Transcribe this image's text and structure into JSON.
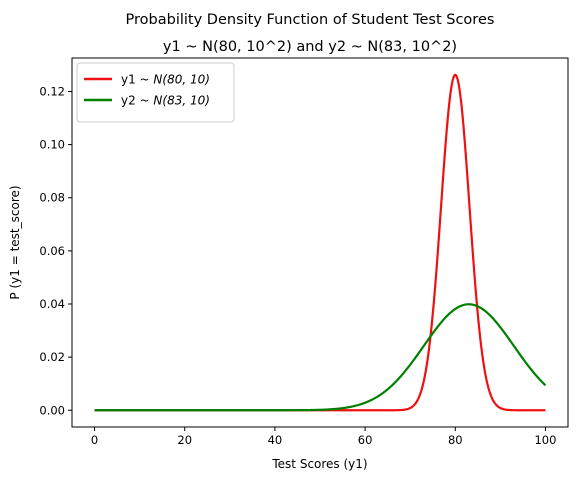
{
  "chart_data": {
    "type": "line",
    "title_line1": "Probability Density Function of Student Test Scores",
    "title_line2": "y1 ~ N(80, 10^2) and y2 ~ N(83, 10^2)",
    "xlabel": "Test Scores (y1)",
    "ylabel": "P (y1 = test_score)",
    "xlim": [
      -5,
      105
    ],
    "ylim": [
      -0.0063,
      0.1326
    ],
    "xticks": [
      0,
      20,
      40,
      60,
      80,
      100
    ],
    "xtick_labels": [
      "0",
      "20",
      "40",
      "60",
      "80",
      "100"
    ],
    "yticks": [
      0.0,
      0.02,
      0.04,
      0.06,
      0.08,
      0.1,
      0.12
    ],
    "ytick_labels": [
      "0.00",
      "0.02",
      "0.04",
      "0.06",
      "0.08",
      "0.10",
      "0.12"
    ],
    "grid": false,
    "legend_position": "top-left",
    "series": [
      {
        "name": "y1",
        "legend_prefix": "y1 ~ ",
        "legend_math": "N(80, 10)",
        "color": "#ee1111",
        "x_range": [
          0,
          100
        ],
        "peak": {
          "x": 80,
          "y": 0.1263
        },
        "values": [
          {
            "x": 0,
            "y": 0.0
          },
          {
            "x": 60,
            "y": 0.0
          },
          {
            "x": 66,
            "y": 0.0005
          },
          {
            "x": 70,
            "y": 0.0059
          },
          {
            "x": 72,
            "y": 0.0149
          },
          {
            "x": 74,
            "y": 0.0307
          },
          {
            "x": 76,
            "y": 0.057
          },
          {
            "x": 78,
            "y": 0.0968
          },
          {
            "x": 80,
            "y": 0.1263
          },
          {
            "x": 82,
            "y": 0.0968
          },
          {
            "x": 84,
            "y": 0.057
          },
          {
            "x": 86,
            "y": 0.0307
          },
          {
            "x": 88,
            "y": 0.0149
          },
          {
            "x": 90,
            "y": 0.0059
          },
          {
            "x": 94,
            "y": 0.0005
          },
          {
            "x": 100,
            "y": 0.0
          }
        ]
      },
      {
        "name": "y2",
        "legend_prefix": "y2 ~ ",
        "legend_math": "N(83, 10)",
        "color": "#008000",
        "x_range": [
          0,
          100
        ],
        "peak": {
          "x": 83,
          "y": 0.0399
        },
        "values": [
          {
            "x": 0,
            "y": 0.0
          },
          {
            "x": 40,
            "y": 0.0
          },
          {
            "x": 50,
            "y": 0.0007
          },
          {
            "x": 55,
            "y": 0.002
          },
          {
            "x": 60,
            "y": 0.0071
          },
          {
            "x": 65,
            "y": 0.0158
          },
          {
            "x": 70,
            "y": 0.0256
          },
          {
            "x": 75,
            "y": 0.0335
          },
          {
            "x": 80,
            "y": 0.0381
          },
          {
            "x": 83,
            "y": 0.0399
          },
          {
            "x": 85,
            "y": 0.0391
          },
          {
            "x": 90,
            "y": 0.0312
          },
          {
            "x": 95,
            "y": 0.0194
          },
          {
            "x": 100,
            "y": 0.0094
          }
        ]
      }
    ]
  }
}
